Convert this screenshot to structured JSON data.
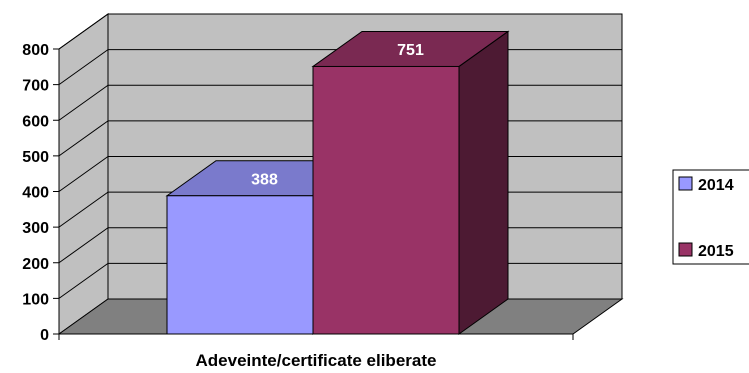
{
  "chart_data": {
    "type": "bar",
    "categories": [
      "Adeveinte/certificate eliberate"
    ],
    "series": [
      {
        "name": "2014",
        "values": [
          388
        ],
        "color": "#9999ff"
      },
      {
        "name": "2015",
        "values": [
          751
        ],
        "color": "#993366"
      }
    ],
    "ylim": [
      0,
      800
    ],
    "yticks": [
      0,
      100,
      200,
      300,
      400,
      500,
      600,
      700,
      800
    ],
    "grid": true,
    "legend": "right",
    "style": "3d-clustered-column"
  }
}
